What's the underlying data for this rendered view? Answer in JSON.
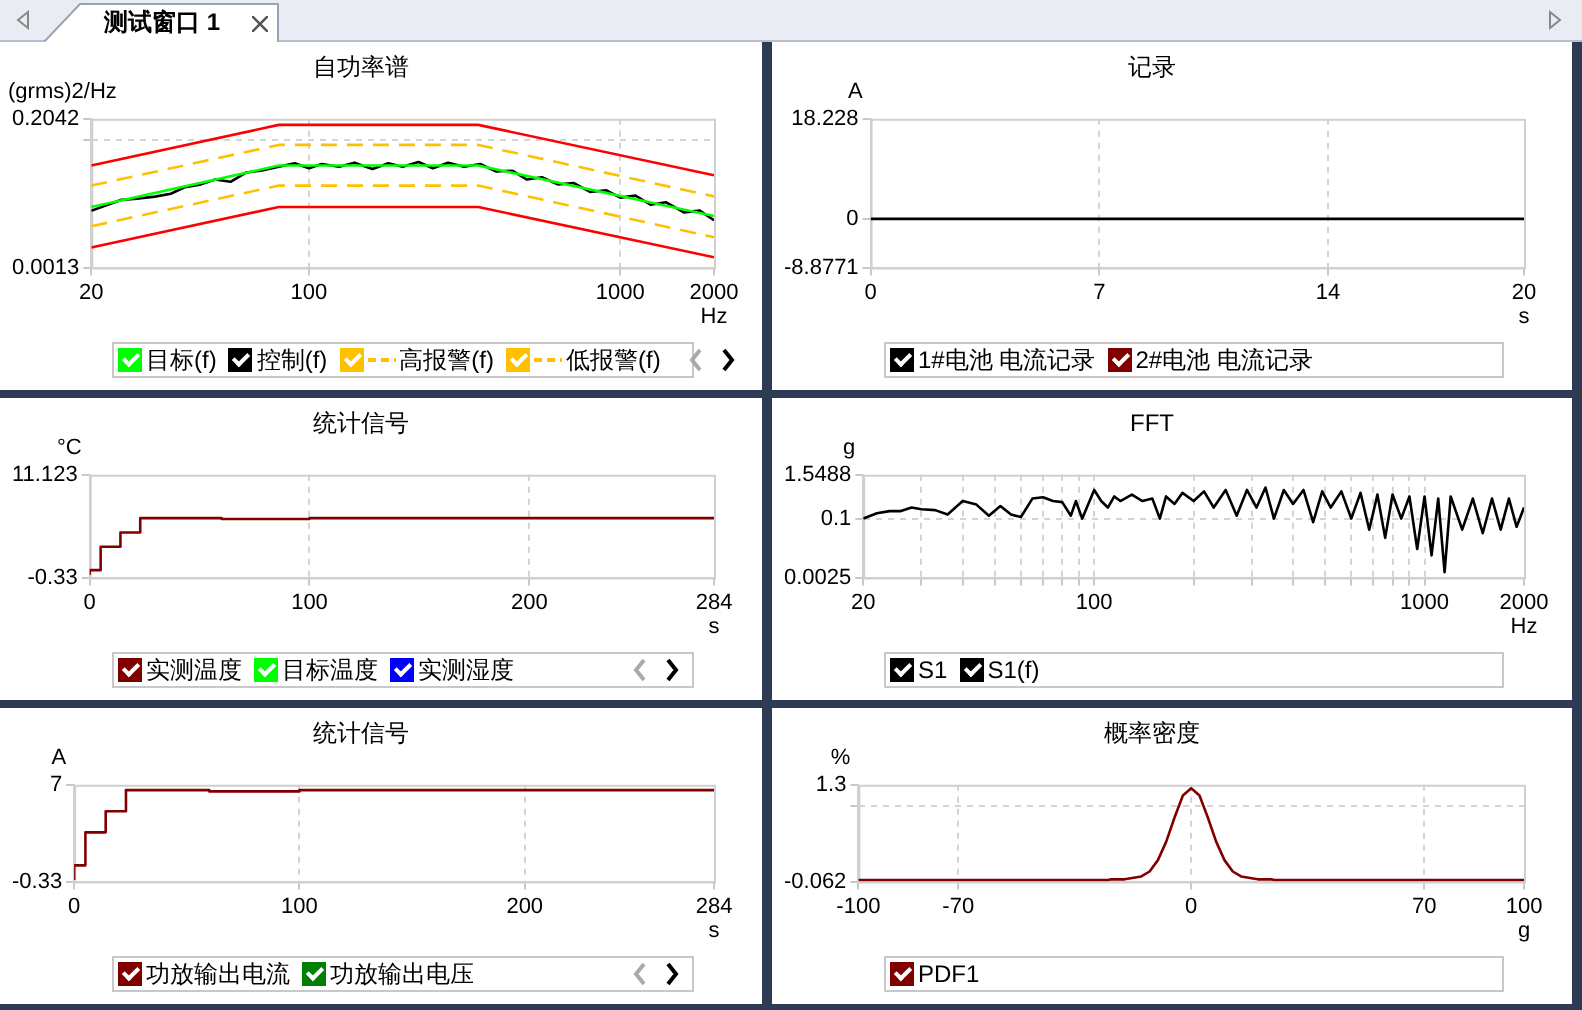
{
  "chart_data": [
    {
      "type": "line",
      "title": "自功率谱",
      "ylabel": "(grms)2/Hz",
      "xlabel": "Hz",
      "annotations": [
        "测试窗口 1"
      ],
      "log": "xy",
      "grid": true,
      "legend": "bottom",
      "xlim": [
        20,
        2000
      ],
      "xticks": [
        20,
        100,
        1000,
        2000
      ],
      "ylim": [
        0.0013,
        0.2042
      ],
      "yticks": [
        0.0013,
        {
          "value": 0.1,
          "label": null
        },
        0.2042
      ],
      "x": [
        20,
        22,
        25,
        28,
        32,
        36,
        40,
        45,
        50,
        56,
        63,
        70,
        80,
        90,
        100,
        110,
        125,
        140,
        160,
        180,
        200,
        225,
        250,
        280,
        315,
        355,
        400,
        450,
        500,
        560,
        630,
        710,
        800,
        900,
        1000,
        1120,
        1250,
        1400,
        1600,
        1800,
        2000
      ],
      "series": [
        {
          "name": "目标(f)",
          "color": "#00ff00",
          "x": [
            20,
            80,
            350,
            2000
          ],
          "values": [
            0.0102,
            0.0417,
            0.0417,
            0.0075
          ]
        },
        {
          "name": "控制(f)",
          "color": "#000000",
          "values": [
            0.009,
            0.0105,
            0.013,
            0.0135,
            0.0145,
            0.016,
            0.02,
            0.022,
            0.026,
            0.024,
            0.033,
            0.035,
            0.04,
            0.045,
            0.038,
            0.044,
            0.04,
            0.046,
            0.037,
            0.045,
            0.04,
            0.047,
            0.038,
            0.046,
            0.04,
            0.044,
            0.034,
            0.035,
            0.026,
            0.028,
            0.022,
            0.023,
            0.017,
            0.018,
            0.014,
            0.015,
            0.011,
            0.012,
            0.0085,
            0.009,
            0.0065
          ]
        },
        {
          "name": "高报警(f)",
          "color": "#ffc000",
          "line_style": "dashed",
          "x": [
            20,
            80,
            350,
            2000
          ],
          "values": [
            0.0211,
            0.0841,
            0.0841,
            0.0146
          ]
        },
        {
          "name": "低报警(f)",
          "color": "#ffc000",
          "line_style": "dashed",
          "x": [
            20,
            80,
            350,
            2000
          ],
          "values": [
            0.0053,
            0.0211,
            0.0211,
            0.00365
          ]
        },
        {
          "color": "#ff0000",
          "x": [
            20,
            80,
            350,
            2000
          ],
          "values": [
            0.0417,
            0.166,
            0.166,
            0.0299
          ]
        },
        {
          "color": "#ff0000",
          "x": [
            20,
            80,
            350,
            2000
          ],
          "values": [
            0.00257,
            0.0102,
            0.0102,
            0.00185
          ]
        }
      ]
    },
    {
      "type": "line",
      "title": "记录",
      "ylabel": "A",
      "xlabel": "s",
      "grid": "x",
      "legend": "bottom",
      "xlim": [
        0,
        20
      ],
      "xticks": [
        0,
        7,
        14,
        20
      ],
      "ylim": [
        -8.8771,
        18.228
      ],
      "yticks": [
        -8.8771,
        0,
        18.228
      ],
      "x": [
        0,
        20
      ],
      "series": [
        {
          "name": "1#电池 电流记录",
          "color": "#000000",
          "values": [
            0,
            0
          ]
        },
        {
          "name": "2#电池 电流记录",
          "color": "#800000",
          "values": [
            null,
            null
          ]
        }
      ]
    },
    {
      "type": "step",
      "title": "统计信号",
      "ylabel": "°C",
      "xlabel": "s",
      "grid": "x",
      "legend": "bottom",
      "xlim": [
        0,
        284
      ],
      "xticks": [
        0,
        100,
        200,
        284
      ],
      "ylim": [
        -0.33,
        11.123
      ],
      "yticks": [
        -0.33,
        11.123
      ],
      "x": [
        0,
        5,
        14,
        23,
        33,
        60,
        100,
        150,
        200,
        250,
        284
      ],
      "series": [
        {
          "name": "实测温度",
          "color": "#800000",
          "values": [
            0,
            0.5,
            3.1,
            4.7,
            6.3,
            6.3,
            6.2,
            6.3,
            6.3,
            6.3,
            6.3
          ]
        },
        {
          "name": "目标温度",
          "color": "#00ff00",
          "values": [
            null,
            null,
            null,
            null,
            null,
            null,
            null,
            null,
            null,
            null,
            null
          ]
        },
        {
          "name": "实测湿度",
          "color": "#0000ff",
          "values": [
            null,
            null,
            null,
            null,
            null,
            null,
            null,
            null,
            null,
            null,
            null
          ]
        }
      ]
    },
    {
      "type": "line",
      "title": "FFT",
      "ylabel": "g",
      "xlabel": "Hz",
      "log": "xy",
      "grid": true,
      "legend": "bottom",
      "xlim": [
        20,
        2000
      ],
      "xticks": [
        20,
        {
          "value": 30,
          "label": null
        },
        {
          "value": 40,
          "label": null
        },
        {
          "value": 50,
          "label": null
        },
        {
          "value": 60,
          "label": null
        },
        {
          "value": 70,
          "label": null
        },
        {
          "value": 80,
          "label": null
        },
        {
          "value": 90,
          "label": null
        },
        100,
        {
          "value": 200,
          "label": null
        },
        {
          "value": 300,
          "label": null
        },
        {
          "value": 400,
          "label": null
        },
        {
          "value": 500,
          "label": null
        },
        {
          "value": 600,
          "label": null
        },
        {
          "value": 700,
          "label": null
        },
        {
          "value": 800,
          "label": null
        },
        {
          "value": 900,
          "label": null
        },
        1000,
        2000
      ],
      "ylim": [
        0.0025,
        1.5488
      ],
      "yticks": [
        0.0025,
        0.1,
        1.5488
      ],
      "x": [
        20,
        22,
        24,
        26,
        28,
        30,
        33,
        36,
        40,
        44,
        48,
        52,
        56,
        60,
        65,
        70,
        75,
        80,
        85,
        88,
        92,
        96,
        100,
        105,
        110,
        115,
        120,
        130,
        140,
        150,
        158,
        165,
        175,
        185,
        200,
        215,
        230,
        250,
        270,
        290,
        310,
        330,
        350,
        375,
        400,
        430,
        460,
        490,
        520,
        560,
        600,
        640,
        680,
        720,
        760,
        800,
        850,
        900,
        950,
        1000,
        1050,
        1100,
        1150,
        1200,
        1300,
        1400,
        1500,
        1600,
        1700,
        1800,
        1900,
        2000
      ],
      "series": [
        {
          "name": "S1",
          "color": "#000000",
          "values": [
            0.1,
            0.14,
            0.16,
            0.16,
            0.2,
            0.18,
            0.17,
            0.13,
            0.3,
            0.24,
            0.12,
            0.22,
            0.13,
            0.11,
            0.35,
            0.38,
            0.3,
            0.28,
            0.12,
            0.3,
            0.1,
            0.25,
            0.6,
            0.3,
            0.2,
            0.4,
            0.3,
            0.45,
            0.3,
            0.35,
            0.1,
            0.4,
            0.25,
            0.5,
            0.3,
            0.55,
            0.2,
            0.6,
            0.12,
            0.6,
            0.2,
            0.7,
            0.1,
            0.6,
            0.25,
            0.6,
            0.08,
            0.55,
            0.2,
            0.55,
            0.1,
            0.5,
            0.05,
            0.45,
            0.03,
            0.45,
            0.1,
            0.4,
            0.015,
            0.4,
            0.01,
            0.35,
            0.0035,
            0.4,
            0.05,
            0.35,
            0.04,
            0.35,
            0.05,
            0.35,
            0.06,
            0.2
          ]
        },
        {
          "name": "S1(f)",
          "color": "#000000",
          "values": [
            null,
            null,
            null,
            null,
            null,
            null,
            null,
            null,
            null,
            null,
            null,
            null,
            null,
            null,
            null,
            null,
            null,
            null,
            null,
            null,
            null,
            null,
            null,
            null,
            null,
            null,
            null,
            null,
            null,
            null,
            null,
            null,
            null,
            null,
            null,
            null,
            null,
            null,
            null,
            null,
            null,
            null,
            null,
            null,
            null,
            null,
            null,
            null,
            null,
            null,
            null,
            null,
            null,
            null,
            null,
            null,
            null,
            null,
            null,
            null,
            null,
            null,
            null,
            null,
            null,
            null,
            null,
            null,
            null,
            null,
            null,
            null
          ]
        }
      ]
    },
    {
      "type": "step",
      "title": "统计信号",
      "ylabel": "A",
      "xlabel": "s",
      "grid": "x",
      "legend": "bottom",
      "xlim": [
        0,
        284
      ],
      "xticks": [
        0,
        100,
        200,
        284
      ],
      "ylim": [
        -0.33,
        7
      ],
      "yticks": [
        -0.33,
        7
      ],
      "x": [
        0,
        5,
        14,
        23,
        33,
        60,
        100,
        150,
        200,
        250,
        284
      ],
      "series": [
        {
          "name": "功放输出电流",
          "color": "#800000",
          "values": [
            -0.2,
            0.9,
            3.4,
            5.0,
            6.6,
            6.6,
            6.5,
            6.6,
            6.6,
            6.6,
            6.6
          ]
        },
        {
          "name": "功放输出电压",
          "color": "#008000",
          "values": [
            null,
            null,
            null,
            null,
            null,
            null,
            null,
            null,
            null,
            null,
            null
          ]
        }
      ]
    },
    {
      "type": "line",
      "title": "概率密度",
      "ylabel": "%",
      "xlabel": "g",
      "grid": true,
      "legend": "bottom",
      "xlim": [
        -100,
        100
      ],
      "xticks": [
        -100,
        -70,
        0,
        70,
        100
      ],
      "ylim": [
        -0.062,
        1.3
      ],
      "yticks": [
        -0.062,
        {
          "value": 1,
          "label": null
        },
        1.3
      ],
      "x": [
        -100,
        -25,
        -24,
        -20,
        -15,
        -12.5,
        -10,
        -7.5,
        -5,
        -2.5,
        0,
        2.5,
        5,
        7.5,
        10,
        12.5,
        15,
        20,
        24,
        25,
        100
      ],
      "series": [
        {
          "name": "PDF1",
          "color": "#800000",
          "values": [
            -0.04,
            -0.04,
            -0.03,
            -0.03,
            0.01,
            0.08,
            0.24,
            0.5,
            0.84,
            1.15,
            1.25,
            1.15,
            0.84,
            0.5,
            0.24,
            0.08,
            0.01,
            -0.03,
            -0.03,
            -0.04,
            -0.04
          ]
        }
      ]
    }
  ]
}
